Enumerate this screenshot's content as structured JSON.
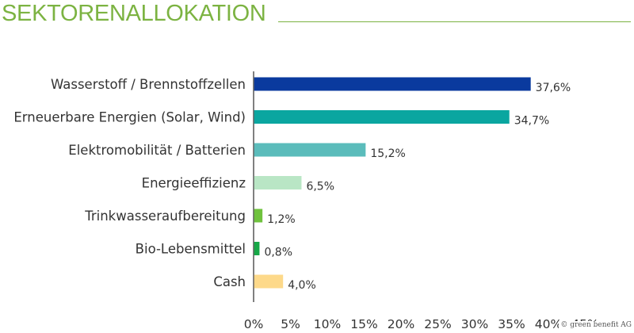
{
  "title": "SEKTORENALLOKATION",
  "copyright": "© green benefit AG",
  "chart_data": {
    "type": "bar",
    "orientation": "horizontal",
    "title": "SEKTORENALLOKATION",
    "xlabel": "",
    "ylabel": "",
    "xlim": [
      0,
      45
    ],
    "x_ticks": [
      "0%",
      "5%",
      "10%",
      "15%",
      "20%",
      "25%",
      "30%",
      "35%",
      "40%",
      "45%"
    ],
    "grid": false,
    "categories": [
      "Wasserstoff / Brennstoffzellen",
      "Erneuerbare Energien (Solar, Wind)",
      "Elektromobilität / Batterien",
      "Energieeffizienz",
      "Trinkwasseraufbereitung",
      "Bio-Lebensmittel",
      "Cash"
    ],
    "values": [
      37.6,
      34.7,
      15.2,
      6.5,
      1.2,
      0.8,
      4.0
    ],
    "value_labels": [
      "37,6%",
      "34,7%",
      "15,2%",
      "6,5%",
      "1,2%",
      "0,8%",
      "4,0%"
    ],
    "colors": [
      "#0a3a9e",
      "#0aa6a0",
      "#5bbcbb",
      "#b9e6c5",
      "#6fc23d",
      "#16a847",
      "#fdd98a"
    ]
  }
}
